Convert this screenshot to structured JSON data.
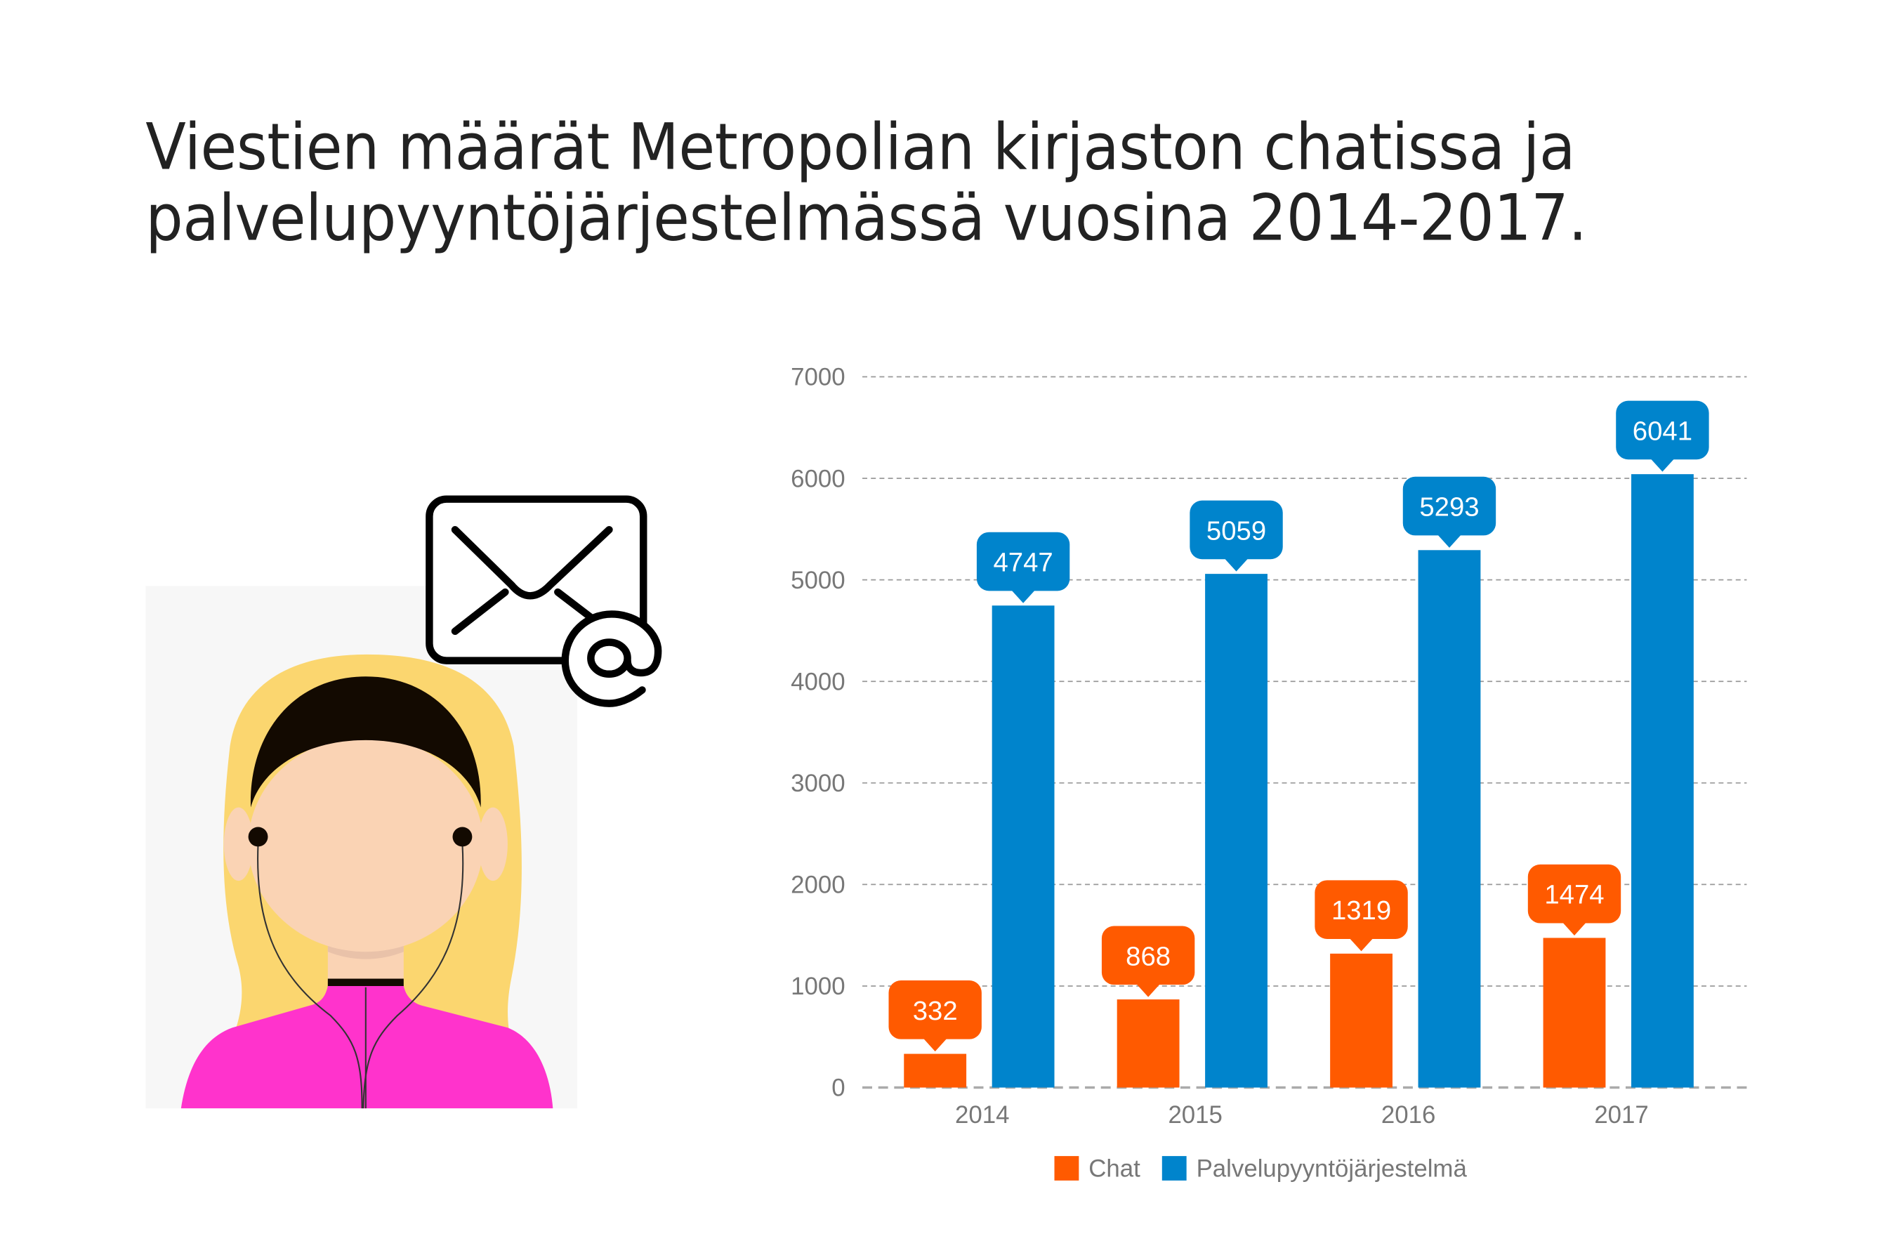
{
  "title": {
    "line1": "Viestien määrät Metropolian kirjaston chatissa ja",
    "line2": "palvelupyyntöjärjestelmässä vuosina 2014-2017."
  },
  "illustration": {
    "icons": [
      "person-with-earphones-icon",
      "envelope-icon",
      "at-sign-icon"
    ]
  },
  "chart_data": {
    "type": "bar",
    "title": "Viestien määrät Metropolian kirjaston chatissa ja palvelupyyntöjärjestelmässä vuosina 2014-2017.",
    "categories": [
      "2014",
      "2015",
      "2016",
      "2017"
    ],
    "series": [
      {
        "name": "Chat",
        "color": "#ff5a00",
        "values": [
          332,
          868,
          1319,
          1474
        ]
      },
      {
        "name": "Palvelupyyntöjärjestelmä",
        "color": "#0084cc",
        "values": [
          4747,
          5059,
          5293,
          6041
        ]
      }
    ],
    "ylim": [
      0,
      7000
    ],
    "yticks": [
      "0",
      "1000",
      "2000",
      "3000",
      "4000",
      "5000",
      "6000",
      "7000"
    ],
    "xlabel": "",
    "ylabel": "",
    "grid": true,
    "legend": "bottom-center"
  }
}
